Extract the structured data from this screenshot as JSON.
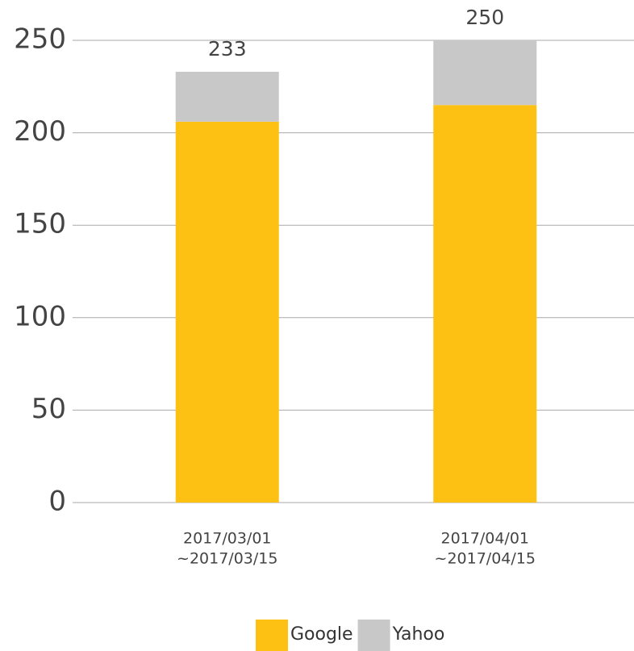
{
  "chart_data": {
    "type": "stacked_bar",
    "categories": [
      [
        "2017/03/01",
        "~2017/03/15"
      ],
      [
        "2017/04/01",
        "~2017/04/15"
      ]
    ],
    "series": [
      {
        "name": "Google",
        "color": "#fdc113",
        "values": [
          206,
          215
        ]
      },
      {
        "name": "Yahoo",
        "color": "#c8c8c8",
        "values": [
          27,
          35
        ]
      }
    ],
    "total_labels": [
      233,
      250
    ],
    "ylim": [
      0,
      250
    ],
    "yticks": [
      0,
      50,
      100,
      150,
      200,
      250
    ],
    "grid": true,
    "legend": "bottom"
  }
}
